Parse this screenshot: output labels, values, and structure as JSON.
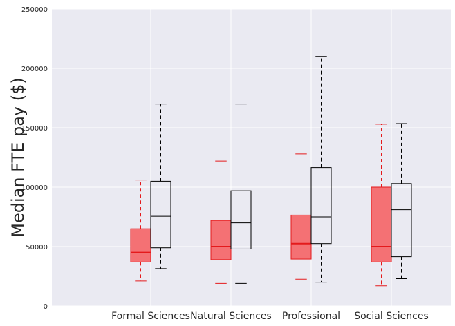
{
  "chart_data": {
    "type": "box",
    "ylabel": "Median FTE pay ($)",
    "xlabel": "",
    "title": "",
    "ylim": [
      0,
      250000
    ],
    "yticks": [
      0,
      50000,
      100000,
      150000,
      200000,
      250000
    ],
    "grid": true,
    "categories": [
      "Formal Sciences",
      "Natural Sciences",
      "Professional",
      "Social Sciences"
    ],
    "series": [
      {
        "color": "#e41a1c",
        "fill": "#f47174",
        "boxes": [
          {
            "whisker_low": 21000,
            "q1": 37000,
            "median": 45000,
            "q3": 65000,
            "whisker_high": 106000
          },
          {
            "whisker_low": 19000,
            "q1": 39000,
            "median": 50000,
            "q3": 72000,
            "whisker_high": 122000
          },
          {
            "whisker_low": 22500,
            "q1": 39500,
            "median": 52500,
            "q3": 76500,
            "whisker_high": 128000
          },
          {
            "whisker_low": 17000,
            "q1": 37000,
            "median": 50000,
            "q3": 100000,
            "whisker_high": 153000
          }
        ]
      },
      {
        "color": "#000000",
        "fill": "none",
        "boxes": [
          {
            "whisker_low": 31500,
            "q1": 49000,
            "median": 75500,
            "q3": 105000,
            "whisker_high": 170000
          },
          {
            "whisker_low": 19000,
            "q1": 48000,
            "median": 70000,
            "q3": 97000,
            "whisker_high": 170000
          },
          {
            "whisker_low": 20000,
            "q1": 52500,
            "median": 75000,
            "q3": 116500,
            "whisker_high": 210000
          },
          {
            "whisker_low": 23000,
            "q1": 41500,
            "median": 81000,
            "q3": 103000,
            "whisker_high": 153500
          }
        ]
      }
    ]
  }
}
